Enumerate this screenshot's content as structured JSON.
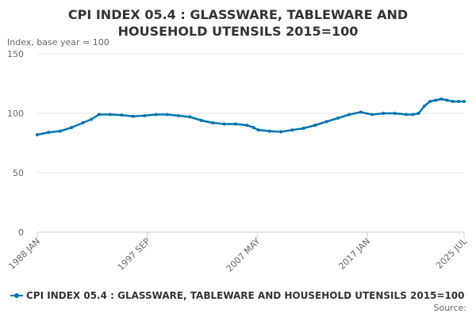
{
  "chart_data": {
    "type": "line",
    "title_lines": [
      "CPI INDEX 05.4 : GLASSWARE, TABLEWARE AND",
      "HOUSEHOLD UTENSILS 2015=100"
    ],
    "unit_label": "Index, base year = 100",
    "ylim": [
      0,
      150
    ],
    "yticks": [
      0,
      50,
      100,
      150
    ],
    "xlim": [
      "1988-01",
      "2025-07"
    ],
    "xtick_labels": [
      {
        "label": "1988 JAN",
        "date": "1988-01"
      },
      {
        "label": "1997 SEP",
        "date": "1997-09"
      },
      {
        "label": "2007 MAY",
        "date": "2007-05"
      },
      {
        "label": "2017 JAN",
        "date": "2017-01"
      },
      {
        "label": "2025 JUL",
        "date": "2025-07"
      }
    ],
    "grid": true,
    "legend_position": "bottom",
    "series": [
      {
        "name": "CPI INDEX 05.4 : GLASSWARE, TABLEWARE AND HOUSEHOLD UTENSILS 2015=100",
        "color": "#0075b2",
        "points": [
          [
            "1988-01",
            82
          ],
          [
            "1989-01",
            84
          ],
          [
            "1990-01",
            85
          ],
          [
            "1991-01",
            88
          ],
          [
            "1992-01",
            92
          ],
          [
            "1992-10",
            95
          ],
          [
            "1993-06",
            99
          ],
          [
            "1994-06",
            99
          ],
          [
            "1995-06",
            98.5
          ],
          [
            "1996-06",
            97.5
          ],
          [
            "1997-06",
            98
          ],
          [
            "1998-06",
            99
          ],
          [
            "1999-06",
            99
          ],
          [
            "2000-06",
            98
          ],
          [
            "2001-06",
            97
          ],
          [
            "2002-06",
            94
          ],
          [
            "2003-06",
            92
          ],
          [
            "2004-06",
            91
          ],
          [
            "2005-06",
            91
          ],
          [
            "2006-06",
            90
          ],
          [
            "2007-01",
            88
          ],
          [
            "2007-06",
            86
          ],
          [
            "2008-06",
            85
          ],
          [
            "2009-06",
            84.5
          ],
          [
            "2010-06",
            86
          ],
          [
            "2011-06",
            87.5
          ],
          [
            "2012-06",
            90
          ],
          [
            "2013-06",
            93
          ],
          [
            "2014-06",
            96
          ],
          [
            "2015-06",
            99
          ],
          [
            "2016-06",
            101
          ],
          [
            "2017-06",
            99
          ],
          [
            "2018-06",
            100
          ],
          [
            "2019-06",
            100
          ],
          [
            "2020-06",
            99
          ],
          [
            "2021-01",
            99
          ],
          [
            "2021-07",
            100
          ],
          [
            "2022-01",
            106
          ],
          [
            "2022-07",
            110
          ],
          [
            "2023-01",
            111
          ],
          [
            "2023-07",
            112
          ],
          [
            "2024-01",
            111
          ],
          [
            "2024-07",
            110
          ],
          [
            "2025-01",
            110
          ],
          [
            "2025-07",
            110
          ]
        ]
      }
    ],
    "source_label": "Source:"
  }
}
